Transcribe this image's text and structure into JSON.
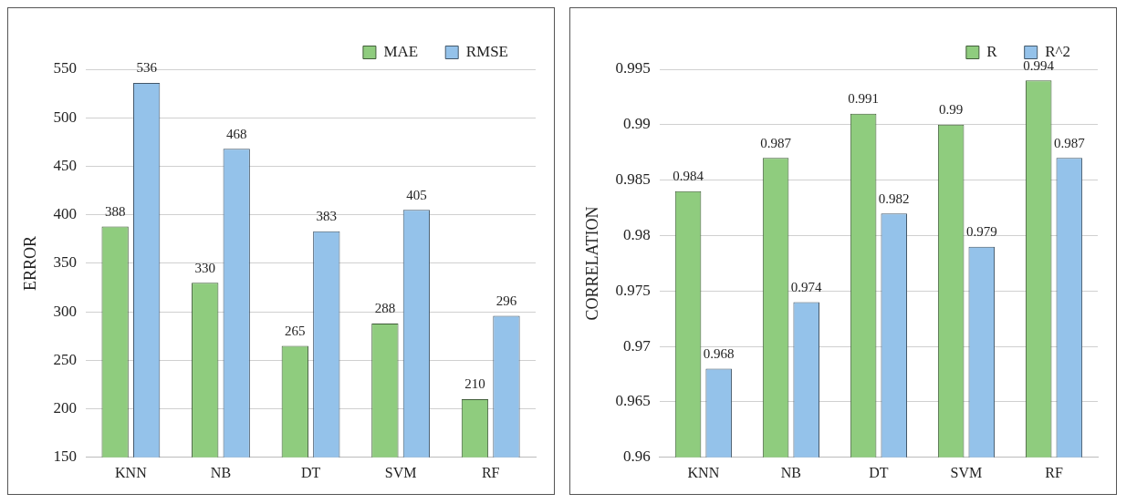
{
  "chart_data": [
    {
      "type": "bar",
      "ylabel": "ERROR",
      "categories": [
        "KNN",
        "NB",
        "DT",
        "SVM",
        "RF"
      ],
      "series": [
        {
          "name": "MAE",
          "color": "#8fcc7e",
          "values": [
            388,
            330,
            265,
            288,
            210
          ]
        },
        {
          "name": "RMSE",
          "color": "#94c2ea",
          "values": [
            536,
            468,
            383,
            405,
            296
          ]
        }
      ],
      "ylim": [
        150,
        550
      ],
      "yticks": [
        150,
        200,
        250,
        300,
        350,
        400,
        450,
        500,
        550
      ],
      "grid": "y",
      "legend": "top right",
      "data_labels": true
    },
    {
      "type": "bar",
      "ylabel": "CORRELATION",
      "categories": [
        "KNN",
        "NB",
        "DT",
        "SVM",
        "RF"
      ],
      "series": [
        {
          "name": "R",
          "color": "#8fcc7e",
          "values": [
            0.984,
            0.987,
            0.991,
            0.99,
            0.994
          ]
        },
        {
          "name": "R^2",
          "color": "#94c2ea",
          "values": [
            0.968,
            0.974,
            0.982,
            0.979,
            0.987
          ]
        }
      ],
      "ylim": [
        0.96,
        0.995
      ],
      "yticks": [
        0.96,
        0.965,
        0.97,
        0.975,
        0.98,
        0.985,
        0.99,
        0.995
      ],
      "grid": "y",
      "legend": "top right",
      "data_labels": true
    }
  ]
}
